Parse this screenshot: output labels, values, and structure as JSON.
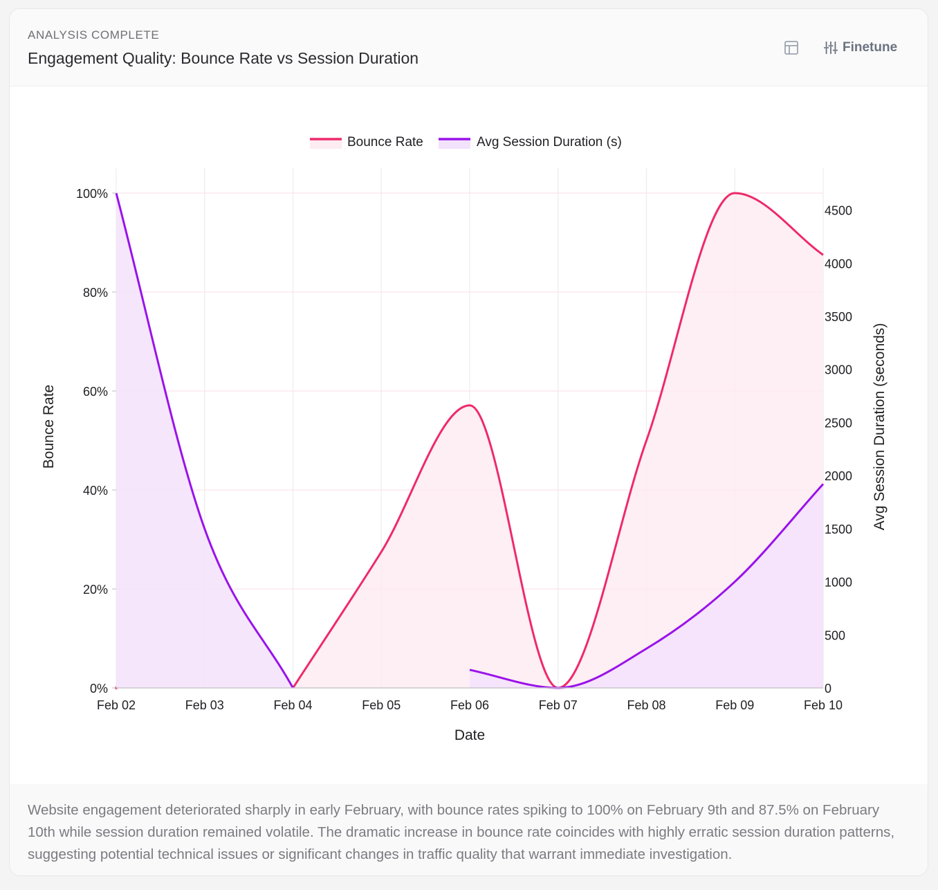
{
  "header": {
    "status": "ANALYSIS COMPLETE",
    "title": "Engagement Quality: Bounce Rate vs Session Duration",
    "finetune_label": "Finetune",
    "table_icon": "table-icon",
    "finetune_icon": "sliders-icon"
  },
  "summary": "Website engagement deteriorated sharply in early February, with bounce rates spiking to 100% on February 9th and 87.5% on February 10th while session duration remained volatile. The dramatic increase in bounce rate coincides with highly erratic session duration patterns, suggesting potential technical issues or significant changes in traffic quality that warrant immediate investigation.",
  "colors": {
    "bounce": "#ee2a6a",
    "bounce_fill": "#fdecf1",
    "duration": "#9a12ea",
    "duration_fill": "#f3e2fb",
    "grid": "#ececee",
    "grid_h": "#fbe3ea",
    "axis": "#c8c8cc",
    "text": "#1f1f23"
  },
  "chart_data": {
    "type": "line",
    "title": "Engagement Quality: Bounce Rate vs Session Duration",
    "xlabel": "Date",
    "ylabel_left": "Bounce Rate",
    "ylabel_right": "Avg Session Duration (seconds)",
    "categories": [
      "Feb 02",
      "Feb 03",
      "Feb 04",
      "Feb 05",
      "Feb 06",
      "Feb 07",
      "Feb 08",
      "Feb 09",
      "Feb 10"
    ],
    "left_ticks": [
      "0%",
      "20%",
      "40%",
      "60%",
      "80%",
      "100%"
    ],
    "left_tick_values": [
      0,
      20,
      40,
      60,
      80,
      100
    ],
    "right_ticks": [
      "0",
      "500",
      "1000",
      "1500",
      "2000",
      "2500",
      "3000",
      "3500",
      "4000",
      "4500"
    ],
    "right_tick_values": [
      0,
      500,
      1000,
      1500,
      2000,
      2500,
      3000,
      3500,
      4000,
      4500
    ],
    "ylim_left": [
      0,
      100
    ],
    "ylim_right": [
      0,
      4660
    ],
    "legend_position": "top-center",
    "series": [
      {
        "name": "Bounce Rate",
        "axis": "left",
        "values": [
          0,
          null,
          0,
          27.5,
          57.1,
          0,
          50,
          100,
          87.5
        ]
      },
      {
        "name": "Avg Session Duration (s)",
        "axis": "right",
        "values": [
          4660,
          1500,
          0,
          null,
          170,
          0,
          370,
          1000,
          1920
        ]
      }
    ]
  }
}
